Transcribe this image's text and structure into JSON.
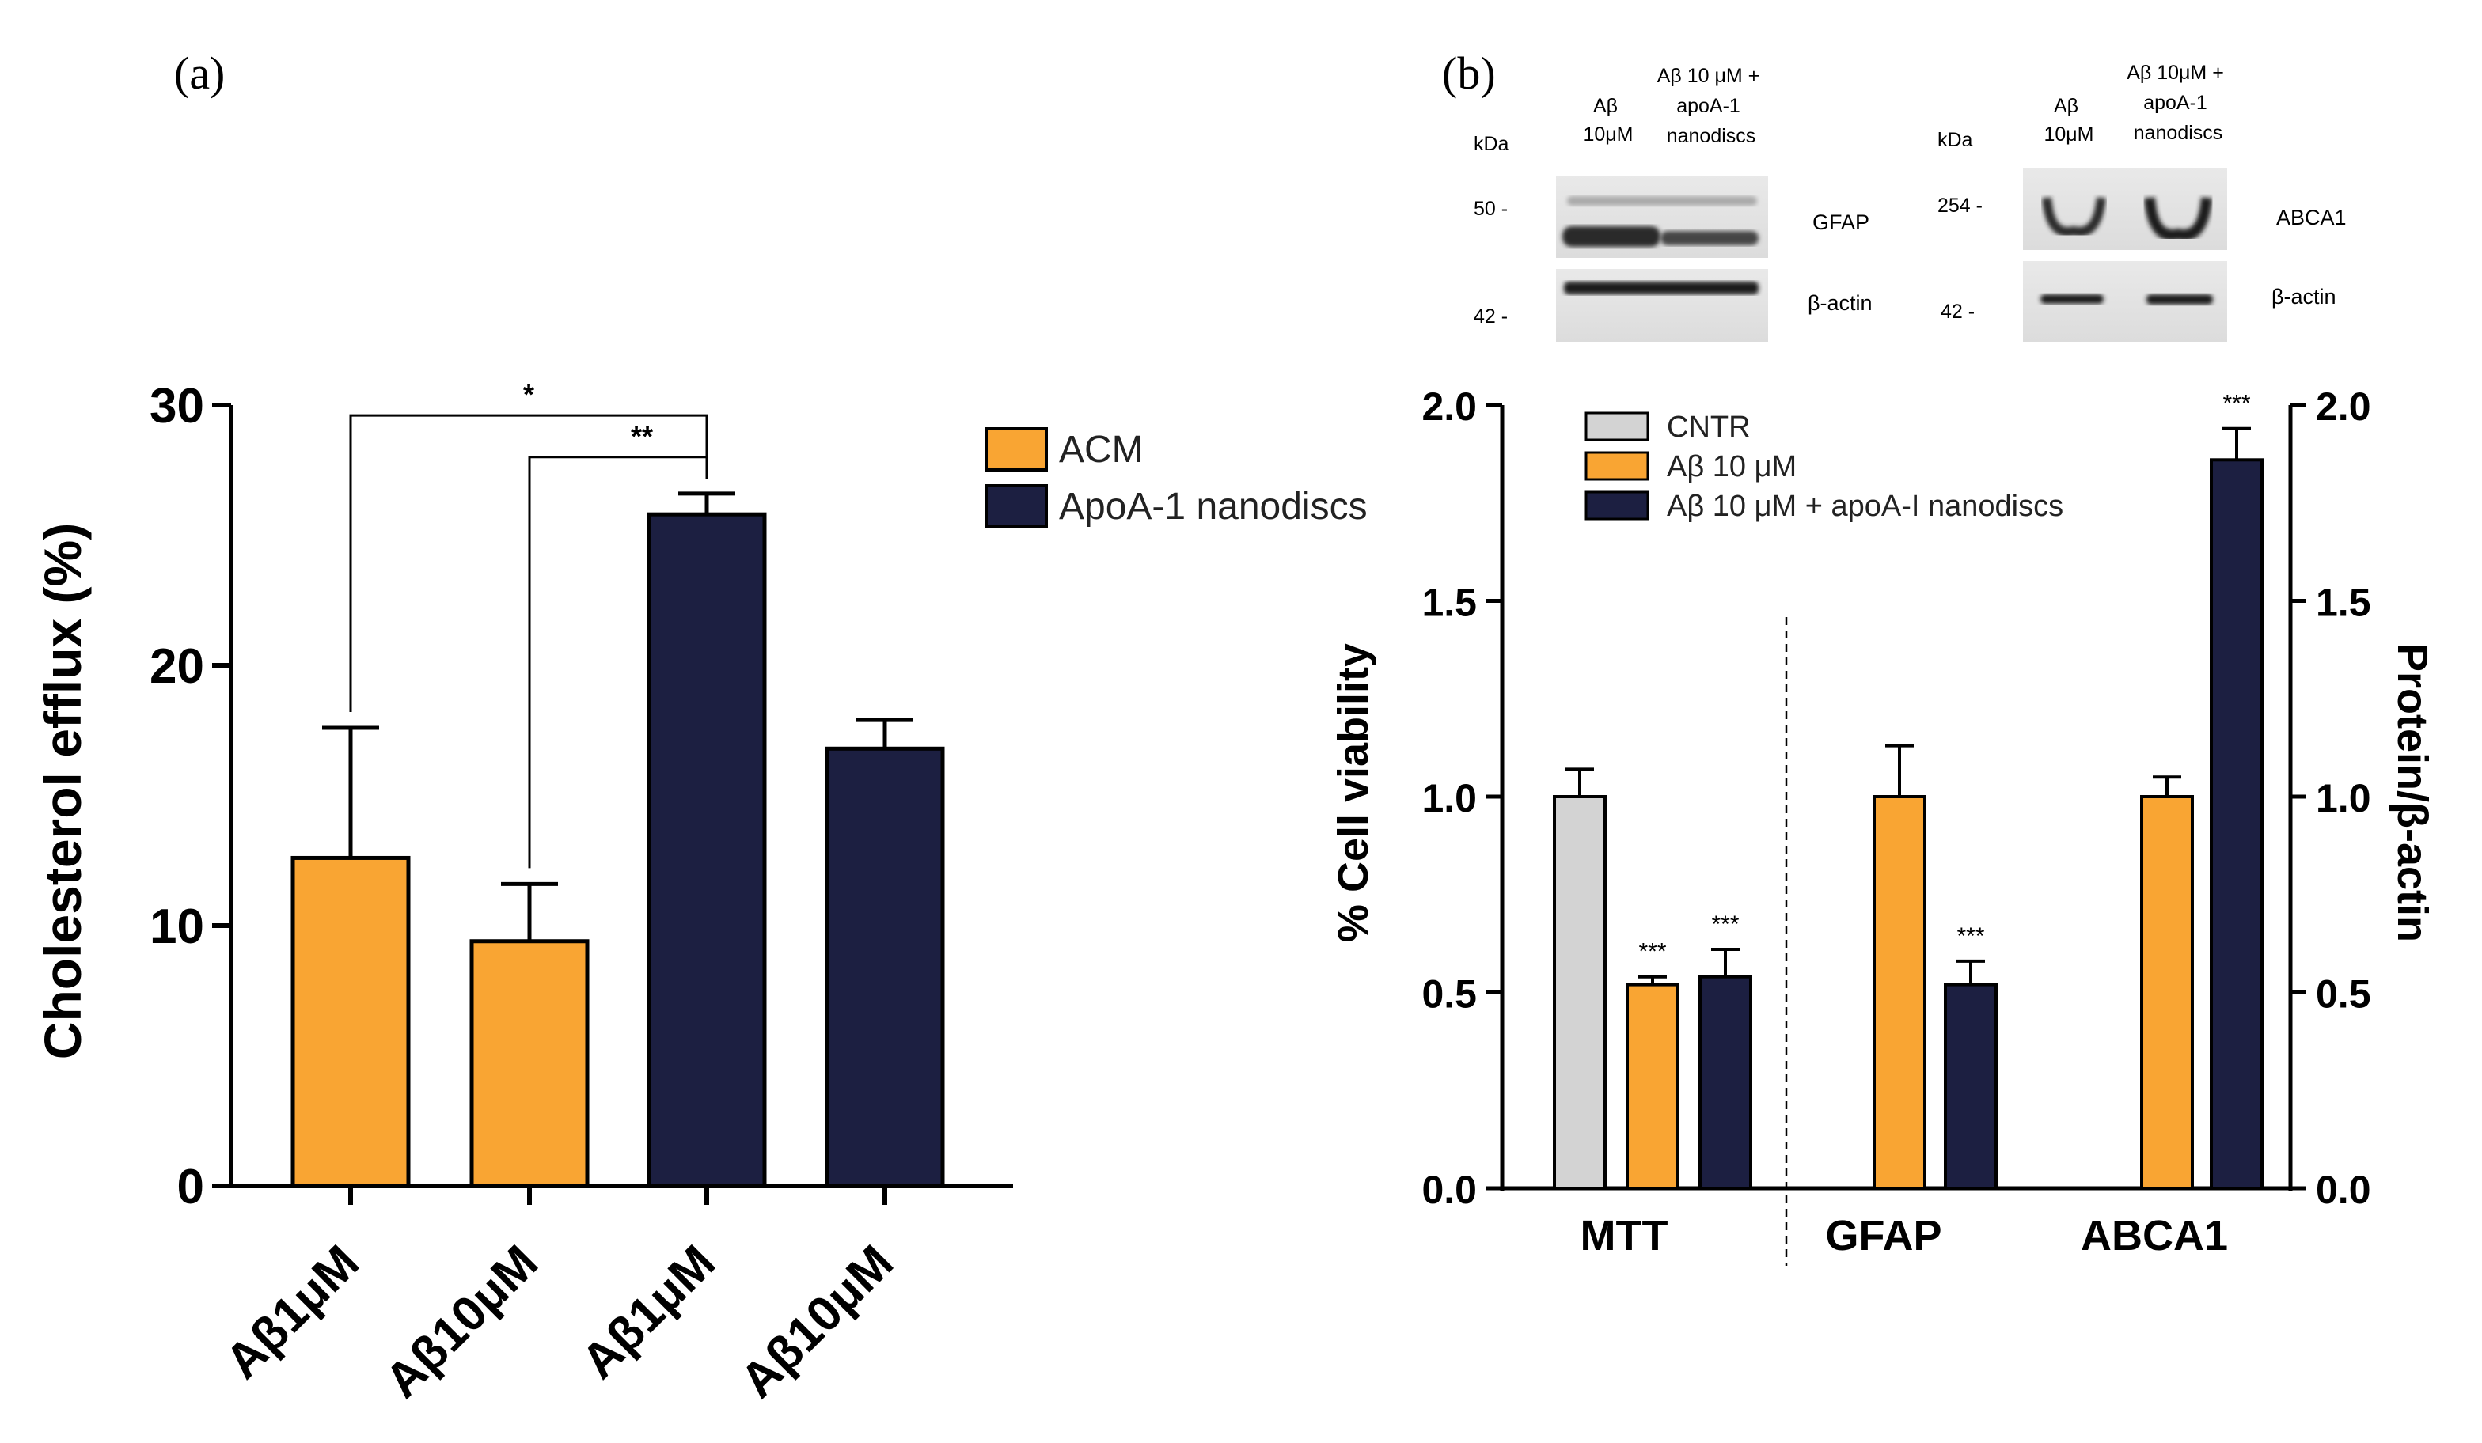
{
  "panel_labels": {
    "a": "(a)",
    "b": "(b)"
  },
  "colors": {
    "orange": "#F9A533",
    "navy": "#1C1F41",
    "gray": "#D3D3D3",
    "axis": "#000000"
  },
  "chart_data": [
    {
      "id": "panel-a",
      "type": "bar",
      "ylabel": "Cholesterol efflux (%)",
      "ylim": [
        0,
        30
      ],
      "yticks": [
        0,
        10,
        20,
        30
      ],
      "categories": [
        "Aβ1μM",
        "Aβ10μM",
        "Aβ1μM",
        "Aβ10μM"
      ],
      "bars": [
        {
          "category": "Aβ1μM",
          "series": "ACM",
          "value": 12.6,
          "error": 5.0
        },
        {
          "category": "Aβ10μM",
          "series": "ACM",
          "value": 9.4,
          "error": 2.2
        },
        {
          "category": "Aβ1μM",
          "series": "ApoA-1 nanodiscs",
          "value": 25.8,
          "error": 0.8
        },
        {
          "category": "Aβ10μM",
          "series": "ApoA-1 nanodiscs",
          "value": 16.8,
          "error": 1.1
        }
      ],
      "legend": [
        {
          "name": "ACM",
          "color_key": "orange"
        },
        {
          "name": "ApoA-1 nanodiscs",
          "color_key": "navy"
        }
      ],
      "legend_position": "top-right",
      "significance": [
        {
          "from": 0,
          "to": 2,
          "label": "*"
        },
        {
          "from": 1,
          "to": 2,
          "label": "**"
        }
      ]
    },
    {
      "id": "panel-b",
      "type": "bar",
      "ylabel_left": "% Cell viability",
      "ylabel_right": "Protein/β-actin",
      "ylim": [
        0,
        2.0
      ],
      "yticks": [
        "0.0",
        "0.5",
        "1.0",
        "1.5",
        "2.0"
      ],
      "groups": [
        "MTT",
        "GFAP",
        "ABCA1"
      ],
      "legend": [
        {
          "name": "CNTR",
          "color_key": "gray"
        },
        {
          "name": "Aβ 10 μM",
          "color_key": "orange"
        },
        {
          "name": "Aβ 10 μM  + apoA-I nanodiscs",
          "color_key": "navy"
        }
      ],
      "legend_position": "top-left",
      "series": [
        {
          "name": "CNTR",
          "values": [
            1.0,
            null,
            null
          ],
          "errors": [
            0.07,
            null,
            null
          ]
        },
        {
          "name": "Aβ 10 μM",
          "values": [
            0.52,
            1.0,
            1.0
          ],
          "errors": [
            0.02,
            0.13,
            0.05
          ]
        },
        {
          "name": "Aβ 10 μM  + apoA-I nanodiscs",
          "values": [
            0.54,
            0.52,
            1.86
          ],
          "errors": [
            0.07,
            0.06,
            0.08
          ]
        }
      ],
      "significance_markers": [
        {
          "group": 0,
          "series": 1,
          "label": "***"
        },
        {
          "group": 0,
          "series": 2,
          "label": "***"
        },
        {
          "group": 1,
          "series": 2,
          "label": "***"
        },
        {
          "group": 2,
          "series": 2,
          "label": "***"
        }
      ]
    }
  ],
  "blots": {
    "left": {
      "kda_header": "kDa",
      "lane1": [
        "Aβ",
        "10μM"
      ],
      "lane2": [
        "Aβ 10 μM +",
        "apoA-1",
        "nanodiscs"
      ],
      "marker_top": "50 -",
      "marker_bottom": "42 -",
      "label_top": "GFAP",
      "label_bottom": "β-actin"
    },
    "right": {
      "kda_header": "kDa",
      "lane1": [
        "Aβ",
        "10μM"
      ],
      "lane2": [
        "Aβ 10μM +",
        "apoA-1",
        "nanodiscs"
      ],
      "marker_top": "254  -",
      "marker_bottom": "42 -",
      "label_top": "ABCA1",
      "label_bottom": "β-actin"
    }
  }
}
